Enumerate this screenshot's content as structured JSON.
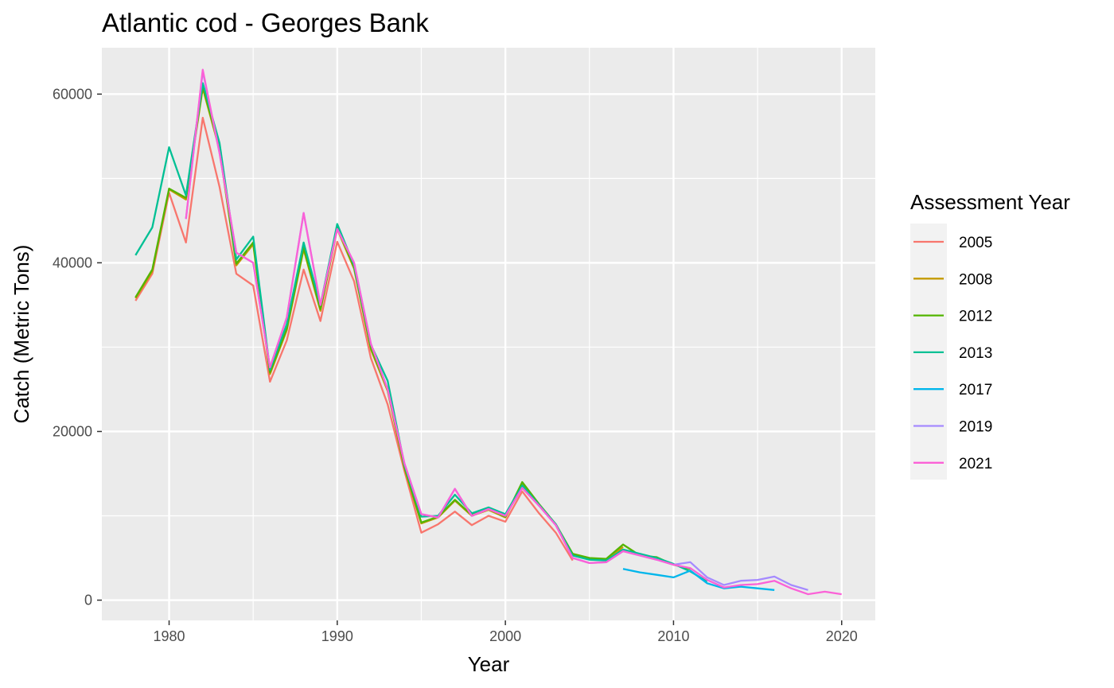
{
  "chart_data": {
    "type": "line",
    "title": "Atlantic cod - Georges Bank",
    "xlabel": "Year",
    "ylabel": "Catch (Metric Tons)",
    "xlim": [
      1976,
      2022
    ],
    "ylim": [
      -2400,
      65500
    ],
    "x_ticks": [
      1980,
      1990,
      2000,
      2010,
      2020
    ],
    "y_ticks": [
      0,
      20000,
      40000,
      60000
    ],
    "x_tick_labels": [
      "1980",
      "1990",
      "2000",
      "2010",
      "2020"
    ],
    "y_tick_labels": [
      "0",
      "20000",
      "40000",
      "60000"
    ],
    "grid": true,
    "legend": {
      "title": "Assessment Year",
      "position": "right"
    },
    "series": [
      {
        "name": "2005",
        "color": "#F8766D",
        "x": [
          1978,
          1979,
          1980,
          1981,
          1982,
          1983,
          1984,
          1985,
          1986,
          1987,
          1988,
          1989,
          1990,
          1991,
          1992,
          1993,
          1994,
          1995,
          1996,
          1997,
          1998,
          1999,
          2000,
          2001,
          2002,
          2003,
          2004
        ],
        "y": [
          35500,
          38700,
          48300,
          42400,
          57200,
          49000,
          38700,
          37300,
          25900,
          30800,
          39200,
          33100,
          42500,
          37800,
          28700,
          23200,
          15300,
          8000,
          9000,
          10500,
          8900,
          10000,
          9300,
          12900,
          10300,
          8000,
          4700
        ]
      },
      {
        "name": "2008",
        "color": "#C49A00",
        "x": [
          1978,
          1979,
          1980,
          1981,
          1982,
          1983,
          1984,
          1985,
          1986,
          1987,
          1988,
          1989,
          1990,
          1991,
          1992,
          1993,
          1994,
          1995,
          1996,
          1997,
          1998,
          1999,
          2000,
          2001,
          2002,
          2003,
          2004,
          2005,
          2006,
          2007
        ],
        "y": [
          35800,
          39000,
          48700,
          47500,
          60700,
          53400,
          39700,
          42200,
          26800,
          32000,
          41600,
          34300,
          44000,
          39300,
          29700,
          24800,
          15600,
          9100,
          9800,
          11800,
          10000,
          10700,
          9800,
          13700,
          11300,
          8900,
          5400,
          4900,
          4700,
          6300
        ]
      },
      {
        "name": "2012",
        "color": "#53B400",
        "x": [
          1978,
          1979,
          1980,
          1981,
          1982,
          1983,
          1984,
          1985,
          1986,
          1987,
          1988,
          1989,
          1990,
          1991,
          1992,
          1993,
          1994,
          1995,
          1996,
          1997,
          1998,
          1999,
          2000,
          2001,
          2002,
          2003,
          2004,
          2005,
          2006,
          2007,
          2008,
          2009,
          2010,
          2011
        ],
        "y": [
          35900,
          39200,
          48800,
          47700,
          60900,
          53600,
          39900,
          42400,
          27000,
          32200,
          41800,
          34500,
          44200,
          39500,
          29900,
          25000,
          15800,
          9200,
          9900,
          11900,
          10100,
          10800,
          9900,
          14000,
          11400,
          9000,
          5500,
          5000,
          4900,
          6600,
          5300,
          5100,
          4200,
          3700
        ]
      },
      {
        "name": "2013",
        "color": "#00C094",
        "x": [
          1978,
          1979,
          1980,
          1981,
          1982,
          1983,
          1984,
          1985,
          1986,
          1987,
          1988,
          1989,
          1990,
          1991,
          1992,
          1993,
          1994,
          1995,
          1996,
          1997,
          1998,
          1999,
          2000,
          2001,
          2002,
          2003,
          2004,
          2005,
          2006,
          2007,
          2008,
          2009,
          2010,
          2011,
          2012
        ],
        "y": [
          40900,
          44200,
          53700,
          48000,
          61300,
          54200,
          40400,
          43100,
          27300,
          32700,
          42400,
          35000,
          44600,
          39700,
          30300,
          26000,
          16000,
          9900,
          10000,
          12500,
          10300,
          11000,
          10200,
          13600,
          11300,
          9000,
          5300,
          4800,
          4700,
          6000,
          5500,
          5000,
          4300,
          3400,
          2200
        ]
      },
      {
        "name": "2017",
        "color": "#00B6EB",
        "x": [
          2007,
          2008,
          2009,
          2010,
          2011,
          2012,
          2013,
          2014,
          2015,
          2016
        ],
        "y": [
          3700,
          3300,
          3000,
          2700,
          3500,
          2000,
          1400,
          1600,
          1400,
          1200
        ]
      },
      {
        "name": "2019",
        "color": "#A58AFF",
        "x": [
          1981,
          1982,
          1983,
          1984,
          1985,
          1986,
          1987,
          1988,
          1989,
          1990,
          1991,
          1992,
          1993,
          1994,
          1995,
          1996,
          1997,
          1998,
          1999,
          2000,
          2001,
          2002,
          2003,
          2004,
          2005,
          2006,
          2007,
          2008,
          2009,
          2010,
          2011,
          2012,
          2013,
          2014,
          2015,
          2016,
          2017,
          2018
        ],
        "y": [
          45200,
          62700,
          53000,
          41200,
          40000,
          27600,
          33500,
          45900,
          35000,
          44000,
          40000,
          30400,
          25000,
          16200,
          10200,
          9800,
          13200,
          10000,
          10800,
          10000,
          13300,
          11200,
          8900,
          5000,
          4400,
          4500,
          5800,
          5300,
          4800,
          4200,
          4500,
          2700,
          1800,
          2300,
          2400,
          2800,
          1800,
          1200
        ]
      },
      {
        "name": "2021",
        "color": "#FB61D7",
        "x": [
          1981,
          1982,
          1983,
          1984,
          1985,
          1986,
          1987,
          1988,
          1989,
          1990,
          1991,
          1992,
          1993,
          1994,
          1995,
          1996,
          1997,
          1998,
          1999,
          2000,
          2001,
          2002,
          2003,
          2004,
          2005,
          2006,
          2007,
          2008,
          2009,
          2010,
          2011,
          2012,
          2013,
          2014,
          2015,
          2016,
          2017,
          2018,
          2019,
          2020
        ],
        "y": [
          45200,
          62900,
          53000,
          41200,
          40000,
          27600,
          33500,
          45900,
          35000,
          44000,
          40000,
          30400,
          25000,
          16200,
          10200,
          9800,
          13200,
          10000,
          10800,
          10000,
          13300,
          11200,
          8900,
          5000,
          4400,
          4500,
          5800,
          5300,
          4800,
          4200,
          3800,
          2400,
          1500,
          1800,
          1900,
          2300,
          1400,
          700,
          1000,
          700
        ]
      }
    ]
  }
}
